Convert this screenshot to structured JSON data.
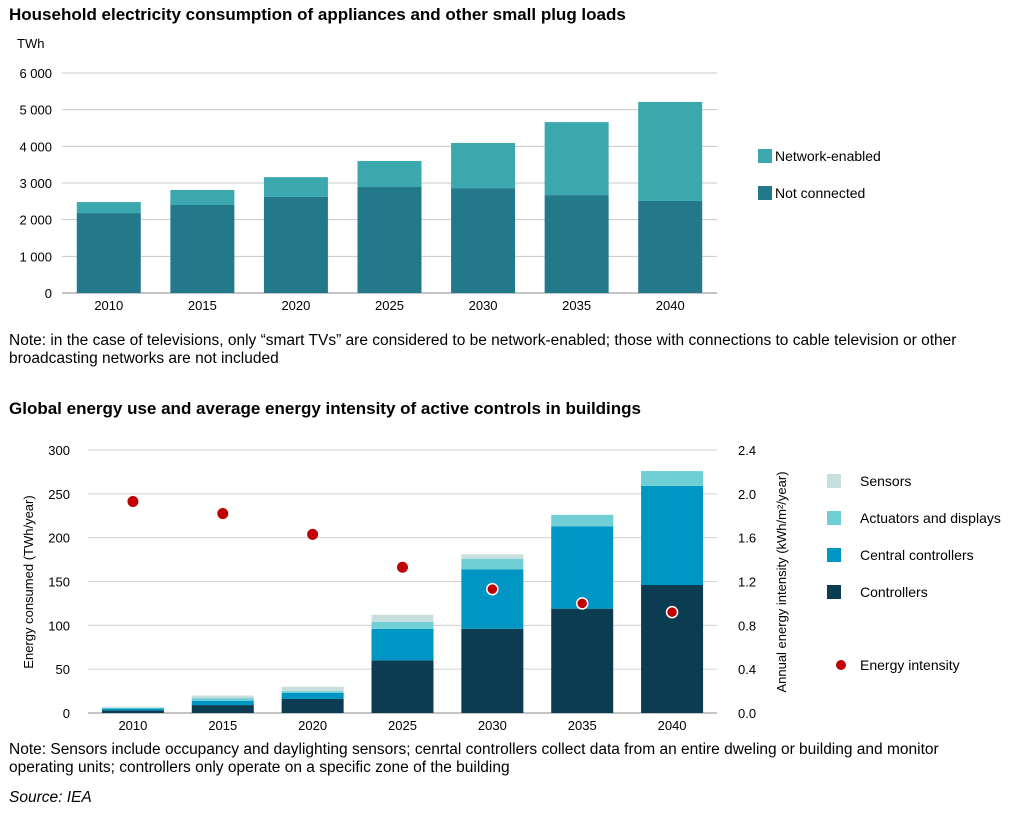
{
  "chart_data": [
    {
      "type": "bar",
      "stacked": true,
      "title": "Household electricity consumption of appliances and other small plug loads",
      "ylabel": "TWh",
      "ylim": [
        0,
        6000
      ],
      "yticks": [
        "0",
        "1 000",
        "2 000",
        "3 000",
        "4 000",
        "5 000",
        "6 000"
      ],
      "grid": true,
      "legend_position": "right",
      "categories": [
        "2010",
        "2015",
        "2020",
        "2025",
        "2030",
        "2035",
        "2040"
      ],
      "series": [
        {
          "name": "Not connected",
          "color": "#23788a",
          "values": [
            2180,
            2400,
            2620,
            2890,
            2860,
            2670,
            2510
          ]
        },
        {
          "name": "Network-enabled",
          "color": "#3aa8ad",
          "values": [
            300,
            410,
            540,
            710,
            1230,
            1990,
            2700
          ]
        }
      ],
      "note": "Note: in the case of televisions, only “smart TVs” are considered to be network-enabled; those with connections to cable television or other broadcasting networks are not included"
    },
    {
      "type": "bar",
      "stacked": true,
      "title": "Global energy use and average energy intensity of active controls in buildings",
      "ylabel": "Energy consumed (TWh/year)",
      "y2label": "Annual energy intensity (kWh/m²/year)",
      "ylim": [
        0,
        300
      ],
      "y2lim": [
        0,
        2.4
      ],
      "yticks": [
        "0",
        "50",
        "100",
        "150",
        "200",
        "250",
        "300"
      ],
      "y2ticks": [
        "0.0",
        "0.4",
        "0.8",
        "1.2",
        "1.6",
        "2.0",
        "2.4"
      ],
      "grid": true,
      "legend_position": "right",
      "categories": [
        "2010",
        "2015",
        "2020",
        "2025",
        "2030",
        "2035",
        "2040"
      ],
      "series": [
        {
          "name": "Controllers",
          "color": "#0b3c52",
          "values": [
            3,
            9,
            16,
            60,
            96,
            119,
            146
          ]
        },
        {
          "name": "Central controllers",
          "color": "#0096c3",
          "values": [
            2,
            5,
            7,
            36,
            68,
            94,
            113
          ]
        },
        {
          "name": "Actuators and displays",
          "color": "#6fcfd4",
          "values": [
            1,
            3,
            2,
            8,
            12,
            13,
            17
          ]
        },
        {
          "name": "Sensors",
          "color": "#c8dfe0",
          "values": [
            1,
            3,
            5,
            8,
            5,
            0,
            0
          ]
        }
      ],
      "line_series": {
        "name": "Energy intensity",
        "type": "scatter",
        "axis": "right",
        "color": "#c00000",
        "values": [
          1.93,
          1.82,
          1.63,
          1.33,
          1.13,
          1.0,
          0.92
        ]
      },
      "note": "Note: Sensors include occupancy and daylighting sensors; cenrtal controllers collect data from an entire dweling or building and monitor operating units; controllers only operate on a specific zone of the building",
      "source": "Source: IEA"
    }
  ]
}
